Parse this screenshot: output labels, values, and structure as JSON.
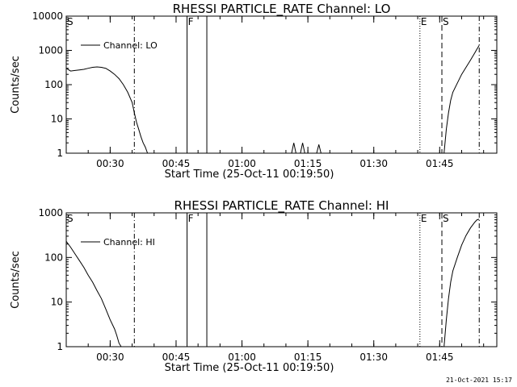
{
  "footer": {
    "timestamp": "21-Oct-2021 15:17"
  },
  "chart_data": [
    {
      "type": "line",
      "title": "RHESSI PARTICLE_RATE Channel: LO",
      "xlabel": "Start Time (25-Oct-11 00:19:50)",
      "ylabel": "Counts/sec",
      "xlim": [
        "00:20",
        "01:58"
      ],
      "ylim": [
        1,
        10000
      ],
      "yscale": "log",
      "xticks": [
        "00:30",
        "00:45",
        "01:00",
        "01:15",
        "01:30",
        "01:45"
      ],
      "yticks": [
        "1",
        "10",
        "100",
        "1000",
        "10000"
      ],
      "legend": {
        "label": "Channel: LO",
        "placement": "top-left"
      },
      "markers": [
        {
          "label": "S",
          "time": "00:20",
          "style": "none"
        },
        {
          "label": "",
          "time": "00:35.5",
          "style": "dashdot"
        },
        {
          "label": "F",
          "time": "00:47.5",
          "style": "solid"
        },
        {
          "label": "",
          "time": "00:52",
          "style": "solid"
        },
        {
          "label": "E",
          "time": "01:40.5",
          "style": "dotted"
        },
        {
          "label": "S",
          "time": "01:45.5",
          "style": "dashed"
        },
        {
          "label": "",
          "time": "01:54",
          "style": "dashdot"
        }
      ],
      "series": [
        {
          "segments": [
            [
              [
                "00:20",
                300
              ],
              [
                "00:21",
                250
              ],
              [
                "00:22",
                260
              ],
              [
                "00:23",
                270
              ],
              [
                "00:24",
                280
              ],
              [
                "00:25",
                300
              ],
              [
                "00:26",
                320
              ],
              [
                "00:27",
                330
              ],
              [
                "00:28",
                320
              ],
              [
                "00:29",
                300
              ],
              [
                "00:30",
                250
              ],
              [
                "00:31",
                200
              ],
              [
                "00:32",
                150
              ],
              [
                "00:33",
                100
              ],
              [
                "00:34",
                60
              ],
              [
                "00:35",
                30
              ],
              [
                "00:35.5",
                15
              ],
              [
                "00:36",
                8
              ],
              [
                "00:36.5",
                5
              ],
              [
                "00:37",
                3
              ],
              [
                "00:37.5",
                2
              ],
              [
                "00:38",
                1.5
              ],
              [
                "00:38.5",
                1
              ]
            ],
            [
              [
                "01:11.3",
                1
              ],
              [
                "01:11.8",
                2
              ],
              [
                "01:12.3",
                1
              ]
            ],
            [
              [
                "01:13.3",
                1
              ],
              [
                "01:13.8",
                2
              ],
              [
                "01:14.3",
                1
              ]
            ],
            [
              [
                "01:17",
                1
              ],
              [
                "01:17.5",
                1.8
              ],
              [
                "01:18",
                1
              ]
            ],
            [
              [
                "01:46",
                1
              ],
              [
                "01:46.5",
                5
              ],
              [
                "01:47",
                15
              ],
              [
                "01:47.5",
                35
              ],
              [
                "01:48",
                60
              ],
              [
                "01:49",
                110
              ],
              [
                "01:50",
                200
              ],
              [
                "01:51",
                320
              ],
              [
                "01:52",
                520
              ],
              [
                "01:53",
                850
              ],
              [
                "01:53.5",
                1100
              ],
              [
                "01:54",
                1400
              ]
            ]
          ]
        }
      ]
    },
    {
      "type": "line",
      "title": "RHESSI PARTICLE_RATE Channel: HI",
      "xlabel": "Start Time (25-Oct-11 00:19:50)",
      "ylabel": "Counts/sec",
      "xlim": [
        "00:20",
        "01:58"
      ],
      "ylim": [
        1,
        1000
      ],
      "yscale": "log",
      "xticks": [
        "00:30",
        "00:45",
        "01:00",
        "01:15",
        "01:30",
        "01:45"
      ],
      "yticks": [
        "1",
        "10",
        "100",
        "1000"
      ],
      "legend": {
        "label": "Channel: HI",
        "placement": "top-left"
      },
      "markers": [
        {
          "label": "S",
          "time": "00:20",
          "style": "none"
        },
        {
          "label": "",
          "time": "00:35.5",
          "style": "dashdot"
        },
        {
          "label": "F",
          "time": "00:47.5",
          "style": "solid"
        },
        {
          "label": "",
          "time": "00:52",
          "style": "solid"
        },
        {
          "label": "E",
          "time": "01:40.5",
          "style": "dotted"
        },
        {
          "label": "S",
          "time": "01:45.5",
          "style": "dashed"
        },
        {
          "label": "",
          "time": "01:54",
          "style": "dashdot"
        }
      ],
      "series": [
        {
          "segments": [
            [
              [
                "00:20",
                230
              ],
              [
                "00:21",
                170
              ],
              [
                "00:22",
                120
              ],
              [
                "00:23",
                85
              ],
              [
                "00:24",
                60
              ],
              [
                "00:25",
                40
              ],
              [
                "00:26",
                28
              ],
              [
                "00:27",
                18
              ],
              [
                "00:28",
                12
              ],
              [
                "00:29",
                7
              ],
              [
                "00:30",
                4
              ],
              [
                "00:31",
                2.5
              ],
              [
                "00:31.5",
                1.8
              ],
              [
                "00:32",
                1.2
              ],
              [
                "00:32.5",
                1
              ]
            ],
            [
              [
                "01:46",
                1
              ],
              [
                "01:46.5",
                4
              ],
              [
                "01:47",
                12
              ],
              [
                "01:47.5",
                28
              ],
              [
                "01:48",
                50
              ],
              [
                "01:49",
                100
              ],
              [
                "01:50",
                190
              ],
              [
                "01:51",
                310
              ],
              [
                "01:52",
                460
              ],
              [
                "01:53",
                620
              ],
              [
                "01:53.5",
                700
              ],
              [
                "01:54",
                720
              ]
            ]
          ]
        }
      ]
    }
  ]
}
